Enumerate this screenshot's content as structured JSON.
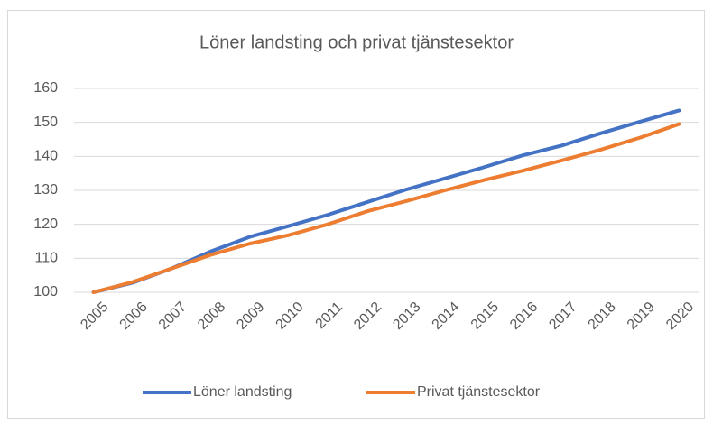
{
  "chart_data": {
    "type": "line",
    "title": "Löner landsting och privat tjänstesektor",
    "categories": [
      "2005",
      "2006",
      "2007",
      "2008",
      "2009",
      "2010",
      "2011",
      "2012",
      "2013",
      "2014",
      "2015",
      "2016",
      "2017",
      "2018",
      "2019",
      "2020"
    ],
    "series": [
      {
        "name": "Löner landsting",
        "color": "#4472c4",
        "values": [
          100,
          102.8,
          107,
          112,
          116.3,
          119.5,
          122.8,
          126.5,
          130.2,
          133.5,
          136.8,
          140.3,
          143.2,
          146.8,
          150.2,
          153.5
        ]
      },
      {
        "name": "Privat tjänstesektor",
        "color": "#ed7d31",
        "values": [
          100,
          103,
          107,
          111,
          114.3,
          116.8,
          120,
          123.8,
          126.8,
          130,
          133,
          135.8,
          138.8,
          142,
          145.5,
          149.5
        ]
      }
    ],
    "ylim": [
      100,
      160
    ],
    "yticks": [
      100,
      110,
      120,
      130,
      140,
      150,
      160
    ],
    "grid": true,
    "legend": "bottom"
  }
}
